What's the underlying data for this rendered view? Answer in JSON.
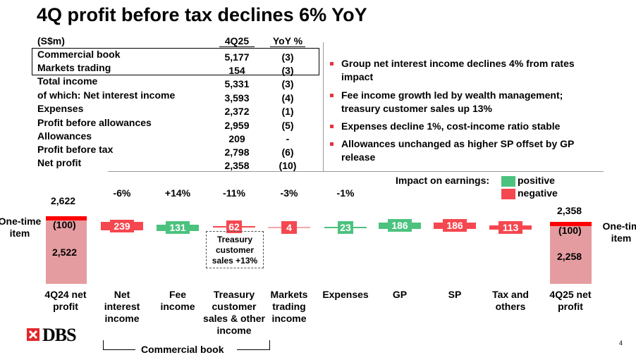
{
  "title": "4Q profit before tax declines 6% YoY",
  "table": {
    "header": [
      "(S$m)",
      "4Q25",
      "YoY %"
    ],
    "rows": [
      [
        "Commercial book",
        "5,177",
        "(3)"
      ],
      [
        "Markets trading",
        "154",
        "(3)"
      ],
      [
        "Total income",
        "5,331",
        "(3)"
      ],
      [
        " of which: Net interest income",
        "3,593",
        "(4)"
      ],
      [
        "Expenses",
        "2,372",
        "(1)"
      ],
      [
        "Profit before allowances",
        "2,959",
        "(5)"
      ],
      [
        "Allowances",
        "209",
        "-"
      ],
      [
        "Profit before tax",
        "2,798",
        "(6)"
      ],
      [
        "Net profit",
        "2,358",
        "(10)"
      ]
    ]
  },
  "bullets": [
    "Group net interest income declines 4% from rates impact",
    "Fee income growth led by wealth management; treasury customer sales up 13%",
    "Expenses decline 1%, cost-income ratio stable",
    "Allowances unchanged as higher SP offset by GP release"
  ],
  "colors": {
    "positive": "#4cc27f",
    "negative": "#f5474f",
    "base": "#e59ca0",
    "onetime": "#ff0000"
  },
  "legend": {
    "title": "Impact on earnings:",
    "positive": "positive",
    "negative": "negative"
  },
  "chart_data": {
    "type": "waterfall",
    "start": {
      "label": "4Q24 net profit",
      "total": "2,622",
      "onetime": "(100)",
      "underlying": "2,522",
      "onetime_label": "One-time item"
    },
    "end": {
      "label": "4Q25 net profit",
      "total": "2,358",
      "onetime": "(100)",
      "underlying": "2,258",
      "onetime_label": "One-tim item"
    },
    "steps": [
      {
        "label": "Net interest income",
        "value": "239",
        "sign": "negative",
        "pct": "-6%"
      },
      {
        "label": "Fee income",
        "value": "131",
        "sign": "positive",
        "pct": "+14%"
      },
      {
        "label": "Treasury customer sales & other income",
        "value": "62",
        "sign": "negative",
        "pct": "-11%"
      },
      {
        "label": "Markets trading income",
        "value": "4",
        "sign": "negative",
        "pct": "-3%"
      },
      {
        "label": "Expenses",
        "value": "23",
        "sign": "positive",
        "pct": "-1%"
      },
      {
        "label": "GP",
        "value": "186",
        "sign": "positive",
        "pct": ""
      },
      {
        "label": "SP",
        "value": "186",
        "sign": "negative",
        "pct": ""
      },
      {
        "label": "Tax and others",
        "value": "113",
        "sign": "negative",
        "pct": ""
      }
    ],
    "callout": "Treasury customer sales +13%",
    "bracket": "Commercial book"
  },
  "page_number": "4",
  "logo": "DBS"
}
